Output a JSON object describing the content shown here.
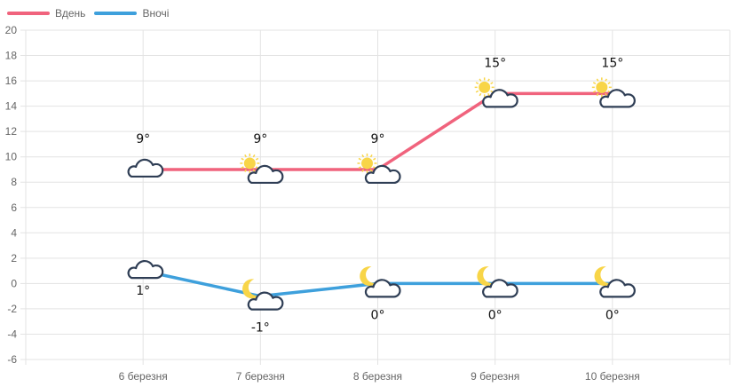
{
  "legend": [
    {
      "label": "Вдень",
      "color": "#f0637d"
    },
    {
      "label": "Вночі",
      "color": "#3ea0dc"
    }
  ],
  "colors": {
    "day": "#f0637d",
    "night": "#3ea0dc",
    "grid": "#e3e3e3",
    "cloud_stroke": "#2f3e55",
    "sun": "#f8d548"
  },
  "chart_data": {
    "type": "line",
    "title": "",
    "xlabel": "",
    "ylabel": "",
    "categories": [
      "6 березня",
      "7 березня",
      "8 березня",
      "9 березня",
      "10 березня"
    ],
    "series": [
      {
        "name": "Вдень",
        "values": [
          9,
          9,
          9,
          15,
          15
        ],
        "labels": [
          "9°",
          "9°",
          "9°",
          "15°",
          "15°"
        ],
        "icons": [
          "cloudy",
          "partly-cloudy-day",
          "partly-cloudy-day",
          "partly-cloudy-day",
          "partly-cloudy-day"
        ]
      },
      {
        "name": "Вночі",
        "values": [
          1,
          -1,
          0,
          0,
          0
        ],
        "labels": [
          "1°",
          "-1°",
          "0°",
          "0°",
          "0°"
        ],
        "icons": [
          "cloudy",
          "partly-cloudy-night",
          "partly-cloudy-night",
          "partly-cloudy-night",
          "partly-cloudy-night"
        ]
      }
    ],
    "yticks": [
      20,
      18,
      16,
      14,
      12,
      10,
      8,
      6,
      4,
      2,
      0,
      -2,
      -4,
      -6
    ],
    "ylim": [
      -6,
      20
    ],
    "grid": true,
    "legend_position": "top-left"
  }
}
